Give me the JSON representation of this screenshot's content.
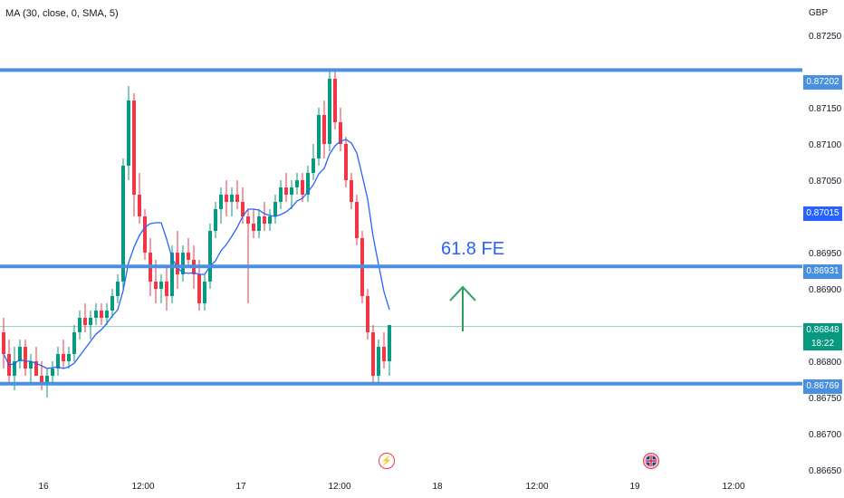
{
  "indicator": {
    "label": "MA (30, close, 0, SMA, 5)"
  },
  "currency": "GBP",
  "annotation": {
    "text": "61.8 FE"
  },
  "colors": {
    "up": "#089981",
    "down": "#f23645",
    "ma": "#2962ff",
    "hline": "#4a90e2",
    "arrow": "#2e9e5b"
  },
  "price_tags": {
    "resistance": "0.87202",
    "ma_value": "0.87015",
    "fe_level": "0.86931",
    "last_price": "0.86848",
    "countdown": "18:22",
    "support": "0.86769"
  },
  "events": [
    {
      "icon": "lightning-icon"
    },
    {
      "icon": "uk-flag-icon"
    }
  ],
  "chart_data": {
    "type": "candlestick",
    "title": "",
    "xlabel": "",
    "ylabel": "",
    "ylim": [
      0.8665,
      0.8728
    ],
    "x_ticks": [
      "16",
      "12:00",
      "17",
      "12:00",
      "18",
      "12:00",
      "19",
      "12:00"
    ],
    "y_ticks": [
      "0.87250",
      "0.87150",
      "0.87100",
      "0.87050",
      "0.87000",
      "0.86950",
      "0.86900",
      "0.86800",
      "0.86750",
      "0.86700",
      "0.86650"
    ],
    "horizontal_levels": [
      0.87202,
      0.86931,
      0.86769
    ],
    "ma_level_last": 0.87015,
    "last_close": 0.86848,
    "candles": [
      [
        0.8684,
        0.8686,
        0.8679,
        0.8681
      ],
      [
        0.8681,
        0.8683,
        0.8677,
        0.8678
      ],
      [
        0.8678,
        0.8682,
        0.8676,
        0.868
      ],
      [
        0.868,
        0.8683,
        0.8679,
        0.8682
      ],
      [
        0.8682,
        0.8683,
        0.8678,
        0.8679
      ],
      [
        0.8679,
        0.8681,
        0.8677,
        0.868
      ],
      [
        0.868,
        0.8682,
        0.8678,
        0.8678
      ],
      [
        0.8678,
        0.868,
        0.8676,
        0.8677
      ],
      [
        0.8677,
        0.8679,
        0.8675,
        0.8678
      ],
      [
        0.8678,
        0.868,
        0.8677,
        0.8679
      ],
      [
        0.8679,
        0.8682,
        0.8678,
        0.8681
      ],
      [
        0.8681,
        0.8683,
        0.8679,
        0.868
      ],
      [
        0.868,
        0.8682,
        0.8679,
        0.8681
      ],
      [
        0.8681,
        0.8685,
        0.868,
        0.8684
      ],
      [
        0.8684,
        0.8687,
        0.8683,
        0.8686
      ],
      [
        0.8686,
        0.8688,
        0.8684,
        0.8685
      ],
      [
        0.8685,
        0.8687,
        0.8683,
        0.8686
      ],
      [
        0.8686,
        0.8688,
        0.8685,
        0.8687
      ],
      [
        0.8687,
        0.8688,
        0.8685,
        0.8686
      ],
      [
        0.8686,
        0.8688,
        0.8685,
        0.8687
      ],
      [
        0.8687,
        0.869,
        0.8686,
        0.8689
      ],
      [
        0.8689,
        0.8692,
        0.8688,
        0.8691
      ],
      [
        0.8691,
        0.8708,
        0.869,
        0.8707
      ],
      [
        0.8707,
        0.8718,
        0.8705,
        0.8716
      ],
      [
        0.8716,
        0.8717,
        0.87,
        0.8703
      ],
      [
        0.8703,
        0.8706,
        0.8699,
        0.87
      ],
      [
        0.87,
        0.8701,
        0.8694,
        0.8695
      ],
      [
        0.8695,
        0.8697,
        0.8689,
        0.8691
      ],
      [
        0.8691,
        0.8694,
        0.8688,
        0.869
      ],
      [
        0.869,
        0.8692,
        0.8688,
        0.8691
      ],
      [
        0.8691,
        0.8693,
        0.8687,
        0.8689
      ],
      [
        0.8689,
        0.8696,
        0.8688,
        0.8695
      ],
      [
        0.8695,
        0.8698,
        0.869,
        0.8692
      ],
      [
        0.8692,
        0.8696,
        0.8691,
        0.8695
      ],
      [
        0.8695,
        0.8697,
        0.8693,
        0.8694
      ],
      [
        0.8694,
        0.8696,
        0.869,
        0.8692
      ],
      [
        0.8692,
        0.8694,
        0.8687,
        0.8688
      ],
      [
        0.8688,
        0.8692,
        0.8687,
        0.8691
      ],
      [
        0.8691,
        0.8699,
        0.869,
        0.8698
      ],
      [
        0.8698,
        0.8702,
        0.8697,
        0.8701
      ],
      [
        0.8701,
        0.8704,
        0.8699,
        0.8703
      ],
      [
        0.8703,
        0.8705,
        0.87,
        0.8702
      ],
      [
        0.8702,
        0.8704,
        0.87,
        0.8703
      ],
      [
        0.8703,
        0.8705,
        0.8701,
        0.8702
      ],
      [
        0.8702,
        0.8704,
        0.8699,
        0.87
      ],
      [
        0.87,
        0.8701,
        0.8688,
        0.8699
      ],
      [
        0.8699,
        0.8701,
        0.8697,
        0.8698
      ],
      [
        0.8698,
        0.8701,
        0.8697,
        0.87
      ],
      [
        0.87,
        0.8702,
        0.8698,
        0.8699
      ],
      [
        0.8699,
        0.8701,
        0.8698,
        0.87
      ],
      [
        0.87,
        0.8703,
        0.8699,
        0.8702
      ],
      [
        0.8702,
        0.8705,
        0.8701,
        0.8704
      ],
      [
        0.8704,
        0.8706,
        0.8702,
        0.8703
      ],
      [
        0.8703,
        0.8705,
        0.8701,
        0.8704
      ],
      [
        0.8704,
        0.8706,
        0.8703,
        0.8705
      ],
      [
        0.8705,
        0.8706,
        0.8702,
        0.8703
      ],
      [
        0.8703,
        0.8707,
        0.8702,
        0.8706
      ],
      [
        0.8706,
        0.871,
        0.8705,
        0.8708
      ],
      [
        0.8708,
        0.8715,
        0.8707,
        0.8714
      ],
      [
        0.8714,
        0.8716,
        0.8708,
        0.871
      ],
      [
        0.871,
        0.872,
        0.8709,
        0.8719
      ],
      [
        0.8719,
        0.872,
        0.8712,
        0.8713
      ],
      [
        0.8713,
        0.8715,
        0.8709,
        0.871
      ],
      [
        0.871,
        0.8711,
        0.8704,
        0.8705
      ],
      [
        0.8705,
        0.8706,
        0.8701,
        0.8702
      ],
      [
        0.8702,
        0.8703,
        0.8696,
        0.8697
      ],
      [
        0.8697,
        0.8698,
        0.8688,
        0.8689
      ],
      [
        0.8689,
        0.869,
        0.8683,
        0.8684
      ],
      [
        0.8684,
        0.8685,
        0.8677,
        0.8678
      ],
      [
        0.8678,
        0.8683,
        0.8677,
        0.8682
      ],
      [
        0.8682,
        0.8684,
        0.8679,
        0.868
      ],
      [
        0.868,
        0.8685,
        0.8678,
        0.8685
      ]
    ]
  }
}
